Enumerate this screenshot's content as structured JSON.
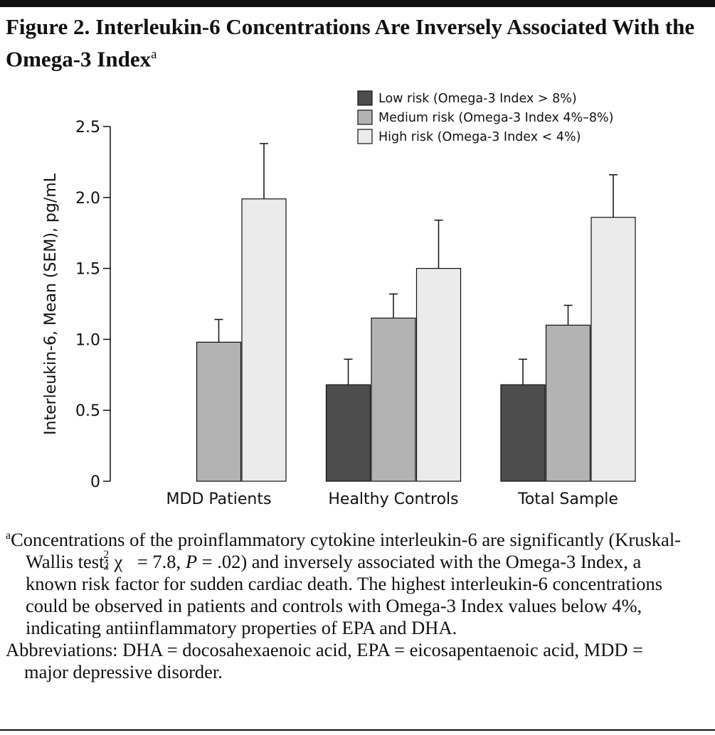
{
  "figure": {
    "title": "Figure 2. Interleukin-6 Concentrations Are Inversely Associated With the Omega-3 Index",
    "title_marker": "a",
    "footnote": {
      "marker": "a",
      "text_1": "Concentrations of the proinflammatory cytokine interleukin-6 are significantly (Kruskal-Wallis test: χ",
      "chi_sup": "2",
      "chi_sub": "2",
      "text_2": " = 7.8, ",
      "p_symbol": "P",
      "text_3": " = .02) and inversely associated with the Omega-3 Index, a known risk factor for sudden cardiac death. The highest interleukin-6 concentrations could be observed in patients and controls with Omega-3 Index values below 4%, indicating antiinflammatory properties of EPA and DHA."
    },
    "abbreviations": "Abbreviations: DHA = docosahexaenoic acid, EPA = eicosapentaenoic acid, MDD = major depressive disorder."
  },
  "chart_data": {
    "type": "bar",
    "y_label": "Interleukin-6, Mean (SEM), pg/mL",
    "categories": [
      "MDD Patients",
      "Healthy Controls",
      "Total Sample"
    ],
    "series": [
      {
        "name": "Low risk (Omega-3 Index > 8%)",
        "color": "#4d4d4d",
        "values": [
          null,
          0.68,
          0.68
        ],
        "errors": [
          null,
          0.18,
          0.18
        ]
      },
      {
        "name": "Medium risk (Omega-3 Index 4%–8%)",
        "color": "#b3b3b3",
        "values": [
          0.98,
          1.15,
          1.1
        ],
        "errors": [
          0.16,
          0.17,
          0.14
        ]
      },
      {
        "name": "High risk (Omega-3 Index < 4%)",
        "color": "#ebebeb",
        "values": [
          1.99,
          1.5,
          1.86
        ],
        "errors": [
          0.39,
          0.34,
          0.3
        ]
      }
    ],
    "ylim": [
      0,
      2.5
    ],
    "yticks": [
      0,
      0.5,
      {
        "value": 1,
        "label": "1.0"
      },
      1.5,
      {
        "value": 2,
        "label": "2.0"
      },
      2.5
    ],
    "legend": "top-right"
  }
}
